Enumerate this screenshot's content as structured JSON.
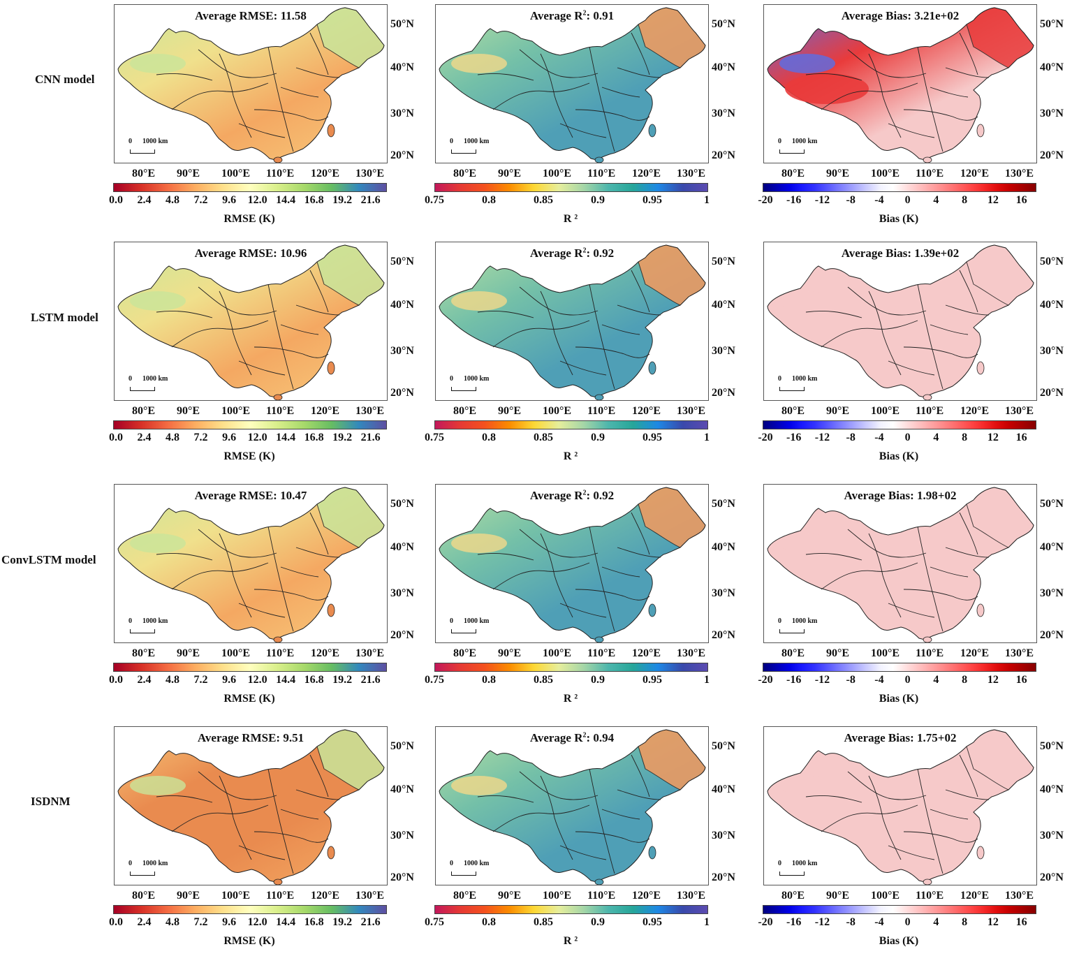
{
  "rows": [
    {
      "label": "CNN model",
      "titles": {
        "rmse": {
          "prefix": "Average RMSE: ",
          "sup": "",
          "value": "11.58"
        },
        "r2": {
          "prefix": "Average R",
          "sup": "2",
          "value": ": 0.91"
        },
        "bias": {
          "prefix": "Average Bias: ",
          "sup": "",
          "value": "3.21e+02"
        }
      }
    },
    {
      "label": "LSTM model",
      "titles": {
        "rmse": {
          "prefix": "Average RMSE: ",
          "sup": "",
          "value": "10.96"
        },
        "r2": {
          "prefix": "Average R",
          "sup": "2",
          "value": ": 0.92"
        },
        "bias": {
          "prefix": "Average Bias: ",
          "sup": "",
          "value": "1.39e+02"
        }
      }
    },
    {
      "label": "ConvLSTM model",
      "titles": {
        "rmse": {
          "prefix": "Average RMSE: ",
          "sup": "",
          "value": "10.47"
        },
        "r2": {
          "prefix": "Average R",
          "sup": "2",
          "value": ": 0.92"
        },
        "bias": {
          "prefix": "Average Bias: ",
          "sup": "",
          "value": "1.98+02"
        }
      }
    },
    {
      "label": "ISDNM",
      "titles": {
        "rmse": {
          "prefix": "Average RMSE: ",
          "sup": "",
          "value": "9.51"
        },
        "r2": {
          "prefix": "Average R",
          "sup": "2",
          "value": ": 0.94"
        },
        "bias": {
          "prefix": "Average Bias: ",
          "sup": "",
          "value": "1.75+02"
        }
      }
    }
  ],
  "lat_labels": [
    "50°N",
    "40°N",
    "30°N",
    "20°N"
  ],
  "lon_labels": [
    "80°E",
    "90°E",
    "100°E",
    "110°E",
    "120°E",
    "130°E"
  ],
  "scalebar": {
    "zero": "0",
    "distance": "1000 km"
  },
  "colorbars": {
    "rmse": {
      "name": "RMSE (K)",
      "ticks": [
        "0.0",
        "2.4",
        "4.8",
        "7.2",
        "9.6",
        "12.0",
        "14.4",
        "16.8",
        "19.2",
        "21.6"
      ],
      "colors": [
        "#a50026",
        "#d73027",
        "#f46d43",
        "#fdae61",
        "#fee08b",
        "#ffffbf",
        "#d9ef8b",
        "#a6d96a",
        "#66bd63",
        "#3288bd",
        "#5e4fa2"
      ]
    },
    "r2": {
      "name": "R ²",
      "ticks": [
        "0.75",
        "0.8",
        "0.85",
        "0.9",
        "0.95",
        "1"
      ],
      "colors": [
        "#c2185b",
        "#e53935",
        "#f4511e",
        "#fb8c00",
        "#fdd835",
        "#e6ee9c",
        "#a5d6a7",
        "#4db6ac",
        "#26a69a",
        "#1e88e5",
        "#3949ab",
        "#5c4bb0"
      ]
    },
    "bias": {
      "name": "Bias (K)",
      "ticks": [
        "-20",
        "-16",
        "-12",
        "-8",
        "-4",
        "0",
        "4",
        "8",
        "12",
        "16"
      ],
      "colors": [
        "#00007f",
        "#0000b3",
        "#0000e6",
        "#1a1aff",
        "#3333ff",
        "#5959ff",
        "#8080ff",
        "#a6a6ff",
        "#ccccff",
        "#f2f2ff",
        "#ffffff",
        "#ffe0e0",
        "#ffc2c2",
        "#ffa3a3",
        "#ff8585",
        "#ff6666",
        "#ff4747",
        "#f52929",
        "#e00d0d",
        "#c40000",
        "#a60000",
        "#880000"
      ]
    }
  },
  "colors": {
    "rmse_fill": [
      "#f4a862",
      "#f7c77a",
      "#f0e08c",
      "#c9e59a",
      "#e98b4f"
    ],
    "r2_fill": [
      "#4f9fb6",
      "#74c0a8",
      "#b8e0a2",
      "#f2d88a",
      "#f39a5e"
    ],
    "bias_fill_pos": "#f6c9c9",
    "bias_fill_strong": "#e93b3b",
    "bias_fill_neg": "#5a6ee6"
  }
}
